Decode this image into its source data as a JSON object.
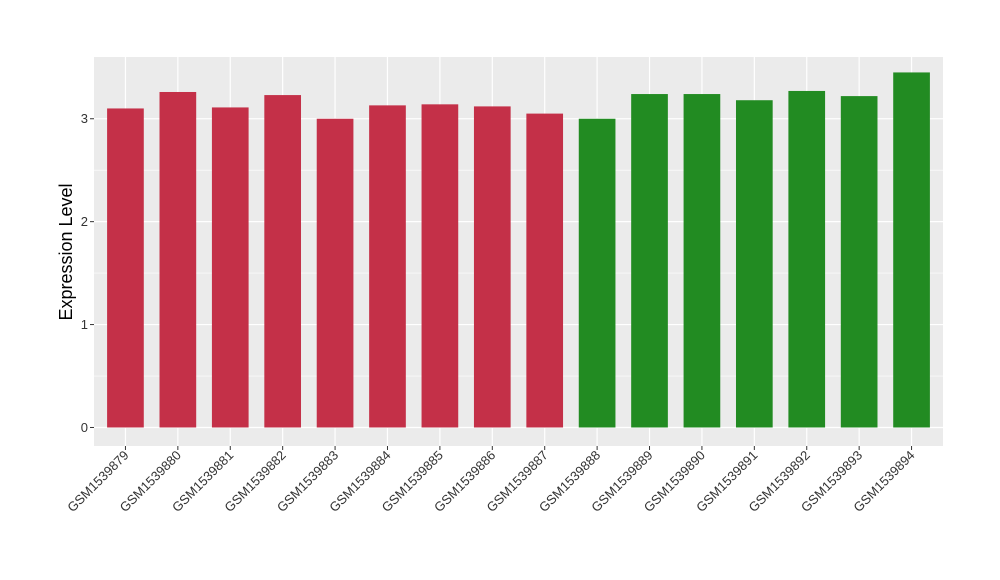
{
  "chart_data": {
    "type": "bar",
    "categories": [
      "GSM1539879",
      "GSM1539880",
      "GSM1539881",
      "GSM1539882",
      "GSM1539883",
      "GSM1539884",
      "GSM1539885",
      "GSM1539886",
      "GSM1539887",
      "GSM1539888",
      "GSM1539889",
      "GSM1539890",
      "GSM1539891",
      "GSM1539892",
      "GSM1539893",
      "GSM1539894"
    ],
    "values": [
      3.1,
      3.26,
      3.11,
      3.23,
      3.0,
      3.13,
      3.14,
      3.12,
      3.05,
      3.0,
      3.24,
      3.24,
      3.18,
      3.27,
      3.22,
      3.45
    ],
    "bar_colors": [
      "#c43048",
      "#c43048",
      "#c43048",
      "#c43048",
      "#c43048",
      "#c43048",
      "#c43048",
      "#c43048",
      "#c43048",
      "#228b22",
      "#228b22",
      "#228b22",
      "#228b22",
      "#228b22",
      "#228b22",
      "#228b22"
    ],
    "title": "",
    "xlabel": "",
    "ylabel": "Expression Level",
    "ylim": [
      -0.18,
      3.6
    ],
    "yticks": [
      0,
      1,
      2,
      3
    ],
    "grid": true,
    "legend": "none",
    "panel_color": "#ebebeb",
    "grid_color": "#ffffff"
  }
}
